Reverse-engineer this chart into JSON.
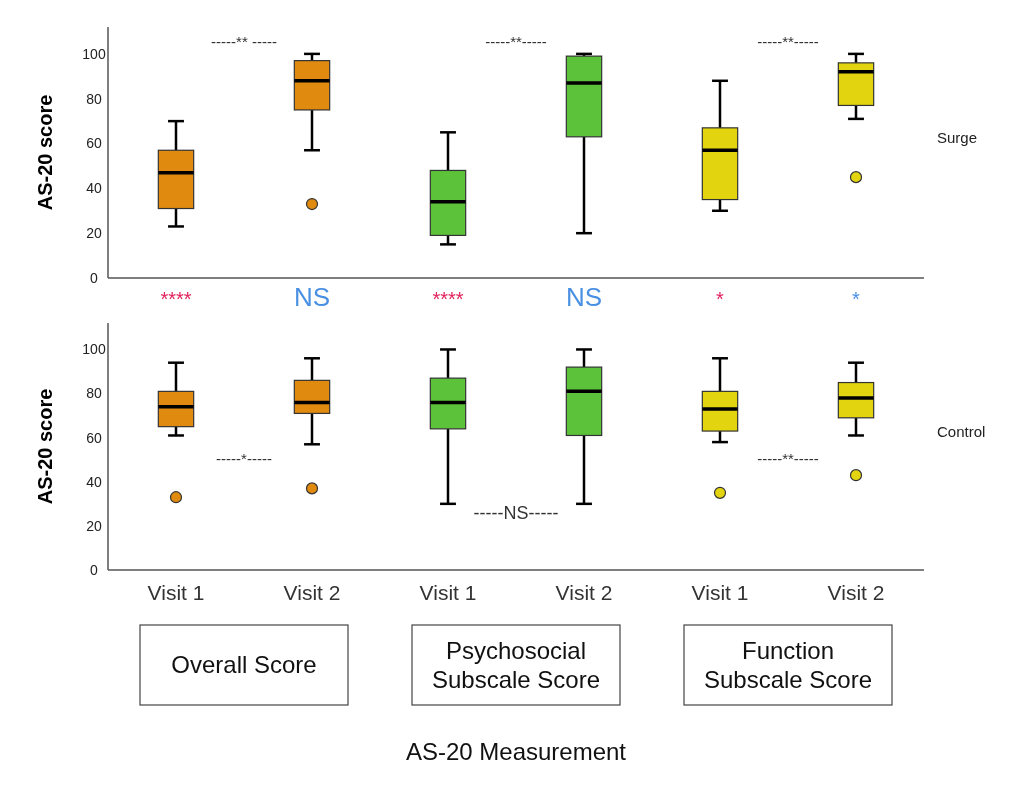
{
  "chart_data": [
    {
      "type": "box",
      "ylabel": "AS-20 score",
      "categories": [
        null,
        null,
        null,
        null,
        null,
        null
      ],
      "colors": [
        "#e08a10",
        "#e08a10",
        "#5cc23a",
        "#5cc23a",
        "#e2d510",
        "#e2d510"
      ],
      "boxes": [
        {
          "low": 23,
          "q1": 31,
          "median": 47,
          "q3": 57,
          "high": 70
        },
        {
          "low": 57,
          "q1": 75,
          "median": 88,
          "q3": 97,
          "high": 100,
          "outliers": [
            33
          ]
        },
        {
          "low": 15,
          "q1": 19,
          "median": 34,
          "q3": 48,
          "high": 65
        },
        {
          "low": 20,
          "q1": 63,
          "median": 87,
          "q3": 99,
          "high": 100
        },
        {
          "low": 30,
          "q1": 35,
          "median": 57,
          "q3": 67,
          "high": 88
        },
        {
          "low": 71,
          "q1": 77,
          "median": 92,
          "q3": 96,
          "high": 100,
          "outliers": [
            45
          ]
        }
      ],
      "ylim": [
        0,
        112
      ],
      "yticks": [
        0,
        20,
        40,
        60,
        80,
        100
      ],
      "tick_labels": "y",
      "annotations": [
        "-----** -----",
        "-----**-----",
        "-----**-----",
        "****",
        "NS",
        "****",
        "NS",
        "*",
        "*",
        "Surge"
      ]
    },
    {
      "type": "box",
      "ylabel": "AS-20 score",
      "xlabel": "AS-20 Measurement",
      "categories": [
        "Visit 1",
        "Visit 2",
        "Visit 1",
        "Visit 2",
        "Visit 1",
        "Visit 2"
      ],
      "colors": [
        "#e08a10",
        "#e08a10",
        "#5cc23a",
        "#5cc23a",
        "#e2d510",
        "#e2d510"
      ],
      "boxes": [
        {
          "low": 61,
          "q1": 65,
          "median": 74,
          "q3": 81,
          "high": 94,
          "outliers": [
            33
          ]
        },
        {
          "low": 57,
          "q1": 71,
          "median": 76,
          "q3": 86,
          "high": 96,
          "outliers": [
            37
          ]
        },
        {
          "low": 30,
          "q1": 64,
          "median": 76,
          "q3": 87,
          "high": 100
        },
        {
          "low": 30,
          "q1": 61,
          "median": 81,
          "q3": 92,
          "high": 100
        },
        {
          "low": 58,
          "q1": 63,
          "median": 73,
          "q3": 81,
          "high": 96,
          "outliers": [
            35
          ]
        },
        {
          "low": 61,
          "q1": 69,
          "median": 78,
          "q3": 85,
          "high": 94,
          "outliers": [
            43
          ]
        }
      ],
      "ylim": [
        0,
        112
      ],
      "yticks": [
        0,
        20,
        40,
        60,
        80,
        100
      ],
      "annotations": [
        "-----*-----",
        "-----NS-----",
        "-----**-----",
        "Overall Score",
        "Psychosocial Subscale Score",
        "Function Subscale Score",
        "Control"
      ]
    }
  ]
}
